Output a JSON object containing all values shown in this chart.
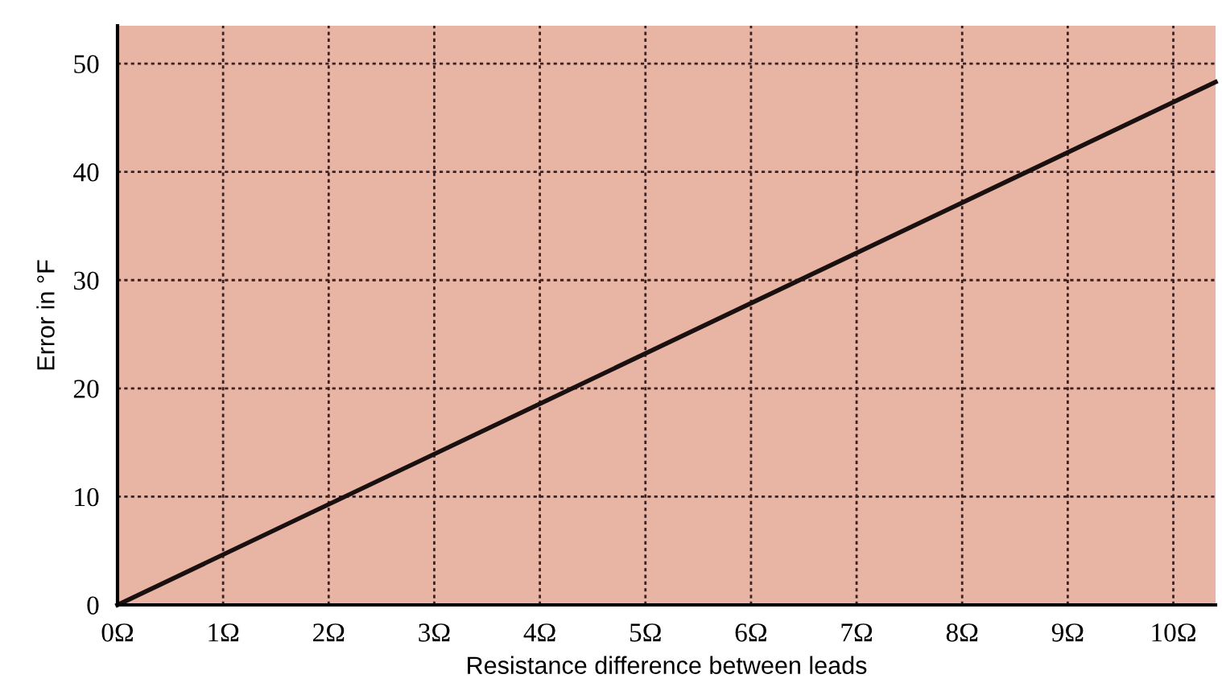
{
  "chart_data": {
    "type": "line",
    "xlabel": "Resistance difference between leads",
    "ylabel": "Error in °F",
    "x": [
      0,
      10.4
    ],
    "series": [
      {
        "color": "#1a1010",
        "values": [
          0,
          48.3
        ]
      }
    ],
    "xlim": [
      0,
      10.4
    ],
    "xticks": [
      {
        "value": 0,
        "label": "0Ω"
      },
      {
        "value": 1,
        "label": "1Ω"
      },
      {
        "value": 2,
        "label": "2Ω"
      },
      {
        "value": 3,
        "label": "3Ω"
      },
      {
        "value": 4,
        "label": "4Ω"
      },
      {
        "value": 5,
        "label": "5Ω"
      },
      {
        "value": 6,
        "label": "6Ω"
      },
      {
        "value": 7,
        "label": "7Ω"
      },
      {
        "value": 8,
        "label": "8Ω"
      },
      {
        "value": 9,
        "label": "9Ω"
      },
      {
        "value": 10,
        "label": "10Ω"
      }
    ],
    "ylim": [
      0,
      53.5
    ],
    "yticks": [
      0,
      10,
      20,
      30,
      40,
      50
    ],
    "grid": true,
    "line_style": "solid",
    "marker": "none"
  }
}
